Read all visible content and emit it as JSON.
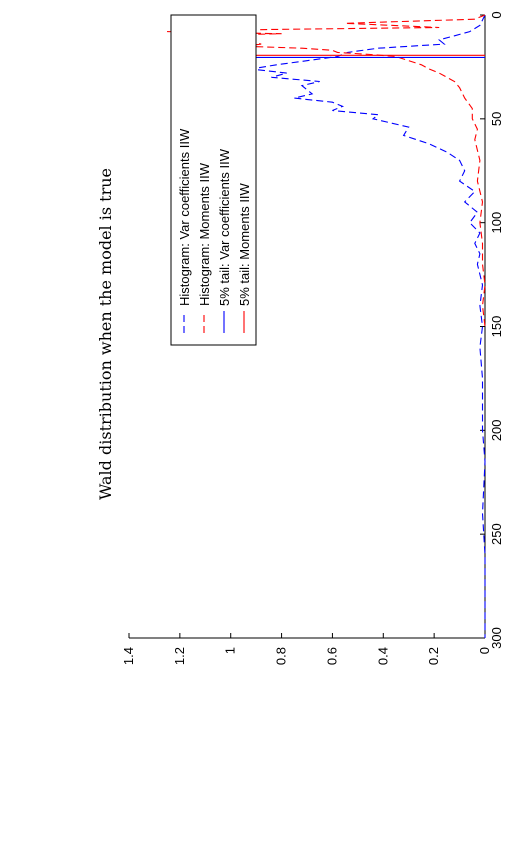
{
  "chart_data": {
    "type": "line",
    "title": "Wald distribution when the model is true",
    "xlabel": "",
    "ylabel": "",
    "xlim": [
      0,
      300
    ],
    "ylim": [
      0,
      1.4
    ],
    "x_ticks": [
      "0",
      "50",
      "100",
      "150",
      "200",
      "250",
      "300"
    ],
    "y_ticks": [
      "0",
      "0.2",
      "0.4",
      "0.6",
      "0.8",
      "1",
      "1.2",
      "1.4"
    ],
    "grid": false,
    "legend_position": "top-right",
    "series": [
      {
        "name": "Histogram: Var coefficients IIW",
        "style": "dashed",
        "color": "#0000ff",
        "x": [
          0,
          5,
          8,
          10,
          12,
          14,
          16,
          18,
          20,
          22,
          24,
          26,
          28,
          30,
          32,
          34,
          36,
          38,
          40,
          42,
          44,
          46,
          48,
          50,
          54,
          58,
          62,
          66,
          70,
          75,
          80,
          85,
          90,
          95,
          100,
          105,
          110,
          115,
          120,
          130,
          140,
          150,
          160,
          175,
          200,
          215,
          240,
          260,
          280,
          300
        ],
        "y": [
          0,
          0.02,
          0.06,
          0.12,
          0.18,
          0.16,
          0.42,
          0.54,
          0.58,
          0.7,
          0.82,
          0.92,
          0.78,
          0.84,
          0.65,
          0.72,
          0.7,
          0.68,
          0.75,
          0.6,
          0.56,
          0.6,
          0.42,
          0.44,
          0.3,
          0.32,
          0.22,
          0.15,
          0.1,
          0.08,
          0.1,
          0.04,
          0.08,
          0.03,
          0.06,
          0.02,
          0.04,
          0.02,
          0.03,
          0.01,
          0.02,
          0.01,
          0.02,
          0.01,
          0.01,
          0.0,
          0.01,
          0.0,
          0.0,
          0.0
        ]
      },
      {
        "name": "Histogram: Moments IIW",
        "style": "dashed",
        "color": "#ff0000",
        "x": [
          0,
          2,
          4,
          6,
          7,
          8,
          9,
          10,
          11,
          12,
          13,
          14,
          15,
          16,
          17,
          18,
          19,
          20,
          22,
          24,
          26,
          28,
          30,
          32,
          35,
          40,
          45,
          50,
          55,
          60,
          70,
          80,
          90,
          100,
          110,
          120,
          130,
          140,
          150
        ],
        "y": [
          0,
          0.04,
          0.55,
          0.18,
          0.85,
          1.25,
          0.8,
          1.18,
          1.05,
          1.2,
          0.92,
          0.88,
          0.95,
          0.72,
          0.6,
          0.58,
          0.45,
          0.35,
          0.3,
          0.25,
          0.22,
          0.18,
          0.15,
          0.12,
          0.1,
          0.08,
          0.05,
          0.05,
          0.03,
          0.04,
          0.02,
          0.03,
          0.01,
          0.02,
          0.01,
          0.01,
          0.0,
          0.01,
          0.0
        ]
      },
      {
        "name": "5% tail: Var coefficients IIW",
        "style": "solid",
        "color": "#0000ff",
        "x": [
          20.4,
          20.4
        ],
        "y": [
          0,
          1.2
        ]
      },
      {
        "name": "5% tail: Moments IIW",
        "style": "solid",
        "color": "#ff0000",
        "x": [
          19.4,
          19.4
        ],
        "y": [
          0,
          1.2
        ]
      }
    ]
  }
}
